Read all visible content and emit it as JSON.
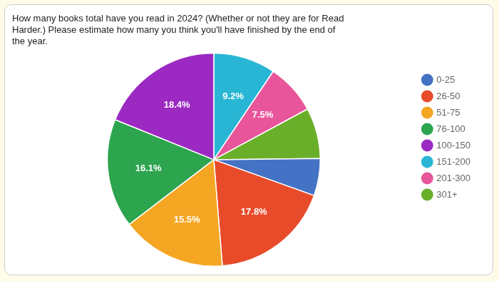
{
  "chart_data": {
    "type": "pie",
    "title": "How many books total have you read in 2024? (Whether or not they are for Read\nHarder.) Please estimate how many you think you'll have finished by the end of\nthe year.",
    "categories": [
      "151-200",
      "201-300",
      "301+",
      "0-25",
      "26-50",
      "51-75",
      "76-100",
      "100-150"
    ],
    "values": [
      9.2,
      7.5,
      7.5,
      5.5,
      17.8,
      15.5,
      16.1,
      18.4
    ],
    "colors": [
      "#29B6D4",
      "#E8559A",
      "#6AAF2A",
      "#4472C4",
      "#E84B2A",
      "#F5A623",
      "#2DA44E",
      "#9B29C2"
    ],
    "data_labels": true,
    "value_labels": [
      "9.2%",
      "7.5%",
      null,
      null,
      "17.8%",
      "15.5%",
      "16.1%",
      "18.4%"
    ],
    "legend": "right"
  }
}
